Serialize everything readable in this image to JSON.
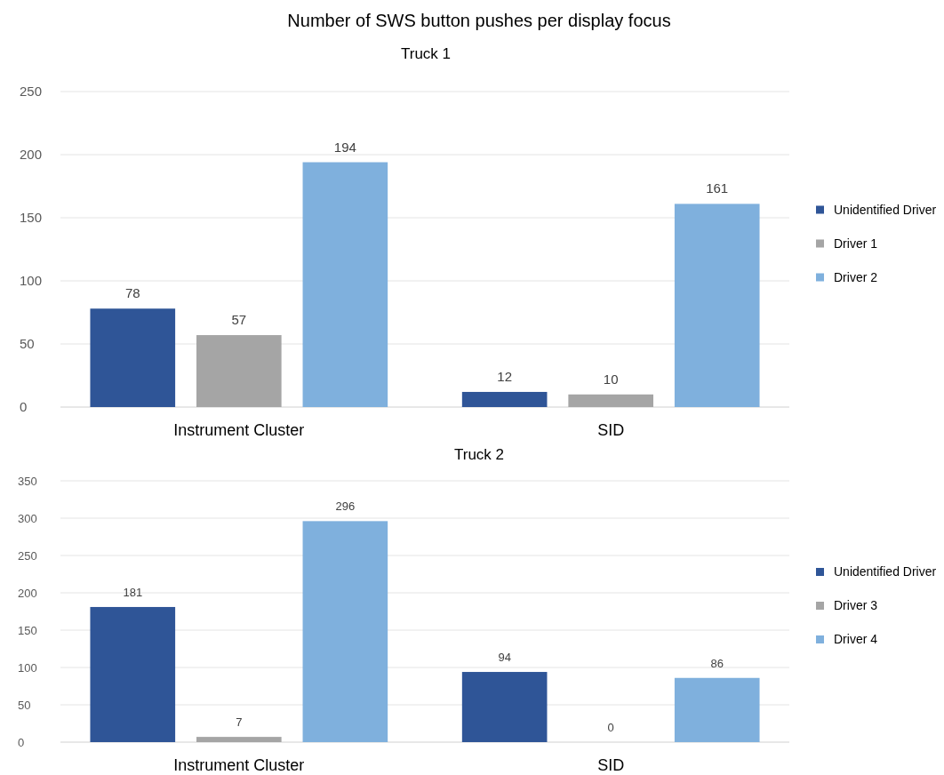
{
  "chart_data": [
    {
      "type": "bar",
      "title": "Number of SWS button pushes per display focus",
      "subtitle": "Truck 1",
      "categories": [
        "Instrument Cluster",
        "SID"
      ],
      "series": [
        {
          "name": "Unidentified Driver",
          "color": "#2f5597",
          "values": [
            78,
            12
          ]
        },
        {
          "name": "Driver 1",
          "color": "#a5a5a5",
          "values": [
            57,
            10
          ]
        },
        {
          "name": "Driver 2",
          "color": "#7fb0dd",
          "values": [
            194,
            161
          ]
        }
      ],
      "ylim": [
        0,
        250
      ],
      "yticks": [
        0,
        50,
        100,
        150,
        200,
        250
      ],
      "grid": "y",
      "legend": "right",
      "data_labels": true
    },
    {
      "type": "bar",
      "title": "Truck 2",
      "categories": [
        "Instrument Cluster",
        "SID"
      ],
      "series": [
        {
          "name": "Unidentified Driver",
          "color": "#2f5597",
          "values": [
            181,
            94
          ]
        },
        {
          "name": "Driver 3",
          "color": "#a5a5a5",
          "values": [
            7,
            0
          ]
        },
        {
          "name": "Driver 4",
          "color": "#7fb0dd",
          "values": [
            296,
            86
          ]
        }
      ],
      "ylim": [
        0,
        350
      ],
      "yticks": [
        0,
        50,
        100,
        150,
        200,
        250,
        300,
        350
      ],
      "grid": "y",
      "legend": "right",
      "data_labels": true
    }
  ]
}
